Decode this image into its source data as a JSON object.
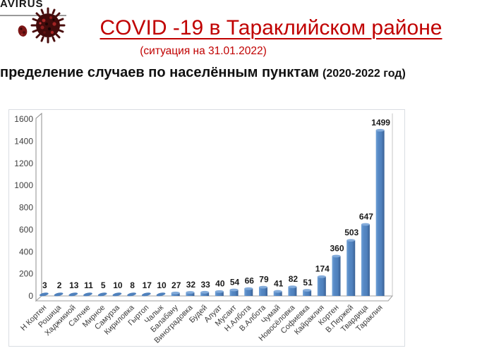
{
  "logo": {
    "text": "AVIRUS"
  },
  "header": {
    "title": "COVID -19 в Тараклийском районе",
    "subtitle": "(ситуация на 31.01.2022)",
    "section_heading": "пределение случаев по населённым пунктам",
    "section_heading_suffix": "(2020-2022 год)"
  },
  "icons": {
    "virus_large": "virus-icon",
    "virus_small": "virus-particle-icon"
  },
  "colors": {
    "accent_red": "#C00000",
    "heading_black": "#111111",
    "bar_fill": "#4F81BD",
    "bar_fill_light": "#6FA0D6",
    "bar_fill_dark": "#3A6195",
    "bar_cap": "#83ABDA",
    "axis_gray": "#8c8c8c",
    "tick_text": "#404040",
    "value_label": "#1a1a1a",
    "category_text": "#3c3c3c",
    "chart_border": "#d9dde2",
    "virus_dark_red": "#5a0f0f"
  },
  "chart_data": {
    "type": "bar",
    "style": "3d-column",
    "title": "",
    "xlabel": "",
    "ylabel": "",
    "categories": [
      "Н Кортен",
      "Рошица",
      "Хаджикиой",
      "Салчие",
      "Мирное",
      "Самурза",
      "Кириловка",
      "Гыртоп",
      "Чалык",
      "Балабану",
      "Виноградовка",
      "Будей",
      "Алуат",
      "Мусаит",
      "Н.Албота",
      "В.Албота",
      "Чумай",
      "Новосёловка",
      "Софиевка",
      "Кайраклия",
      "Кортен",
      "В.Пержей",
      "Твардица",
      "Тараклия"
    ],
    "values": [
      3,
      2,
      13,
      11,
      5,
      10,
      8,
      17,
      10,
      27,
      32,
      33,
      40,
      54,
      66,
      79,
      41,
      82,
      51,
      174,
      360,
      503,
      647,
      1499
    ],
    "ylim": [
      0,
      1600
    ],
    "ytick_step": 200,
    "grid": false,
    "legend": false,
    "value_labels": true
  }
}
